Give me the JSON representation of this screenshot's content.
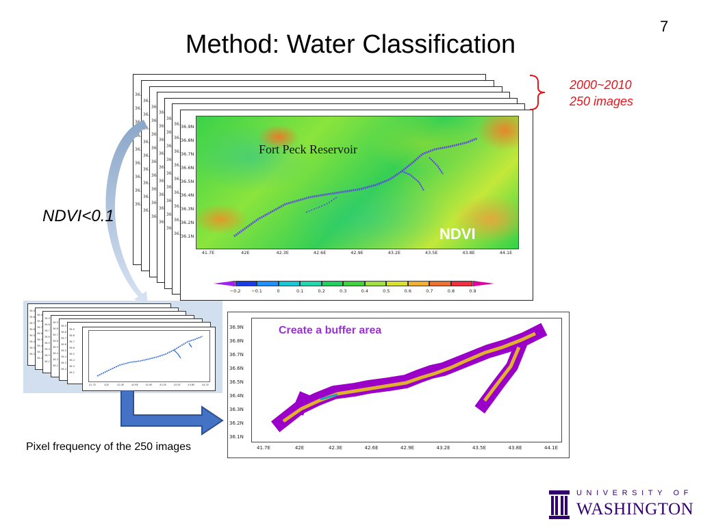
{
  "slide": {
    "number": "7",
    "title": "Method: Water Classification"
  },
  "stack": {
    "date_range_line1": "2000~2010",
    "date_range_line2": "250 images",
    "highlight_color": "#e8141d"
  },
  "ndvi_map": {
    "place_label": "Fort Peck Reservoir",
    "index_label": "NDVI",
    "lat_ticks": [
      "36.9N",
      "36.8N",
      "36.7N",
      "36.6N",
      "36.5N",
      "36.4N",
      "36.3N",
      "36.2N",
      "36.1N"
    ],
    "lon_ticks": [
      "41.7E",
      "42E",
      "42.3E",
      "42.6E",
      "42.9E",
      "43.2E",
      "43.5E",
      "43.8E",
      "44.1E"
    ],
    "colorbar_ticks": [
      "−0.2",
      "−0.1",
      "0",
      "0.1",
      "0.2",
      "0.3",
      "0.4",
      "0.5",
      "0.6",
      "0.7",
      "0.8",
      "0.9"
    ],
    "colorbar_colors": [
      "#a020f0",
      "#1c3be8",
      "#1e90ff",
      "#18c8d8",
      "#1fd8b0",
      "#20d060",
      "#40d040",
      "#a0e040",
      "#d8e030",
      "#f0b030",
      "#f07030",
      "#f03040",
      "#e000a0"
    ]
  },
  "threshold_label": "NDVI<0.1",
  "frequency": {
    "caption": "Pixel frequency of the 250 images",
    "panel_color": "#d2dfef"
  },
  "buffer_map": {
    "label": "Create a buffer area",
    "label_color": "#9b30d9",
    "buffer_color": "#9a00c8",
    "core_color": "#e0b030",
    "lat_ticks": [
      "36.9N",
      "36.8N",
      "36.7N",
      "36.6N",
      "36.5N",
      "36.4N",
      "36.3N",
      "36.2N",
      "36.1N"
    ],
    "lon_ticks": [
      "41.7E",
      "42E",
      "42.3E",
      "42.6E",
      "42.9E",
      "43.2E",
      "43.5E",
      "43.8E",
      "44.1E"
    ]
  },
  "logo": {
    "line1": "UNIVERSITY OF",
    "line2": "WASHINGTON",
    "color": "#33006f"
  }
}
